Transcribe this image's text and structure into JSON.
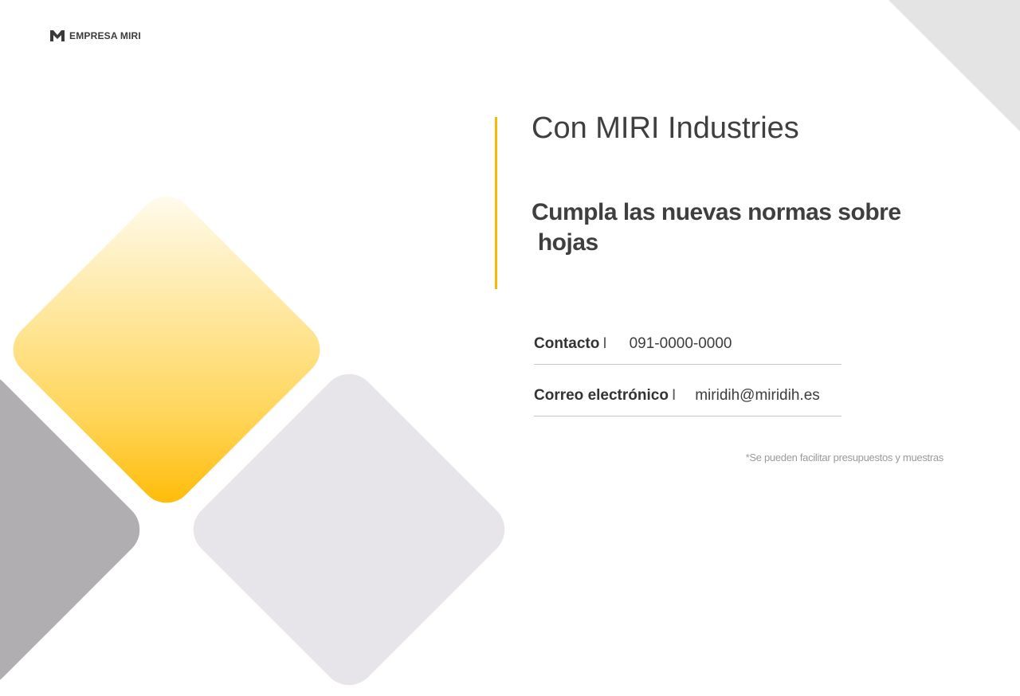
{
  "logo": {
    "text": "EMPRESA MIRI",
    "icon": "m-logo-icon"
  },
  "title": "Con MIRI Industries",
  "headline": [
    "Cumpla las nuevas normas sobre",
    " hojas"
  ],
  "contacts": [
    {
      "label": "Contacto",
      "separator": "I",
      "value": "091-0000-0000"
    },
    {
      "label": "Correo electrónico",
      "separator": "I",
      "value": "miridih@miridih.es"
    }
  ],
  "note": "*Se pueden facilitar presupuestos y muestras",
  "colors": {
    "accent": "#FFB900",
    "gray_dark": "#B0AEB1",
    "gray_light": "#E7E5E9",
    "text": "#3F3F3F"
  }
}
